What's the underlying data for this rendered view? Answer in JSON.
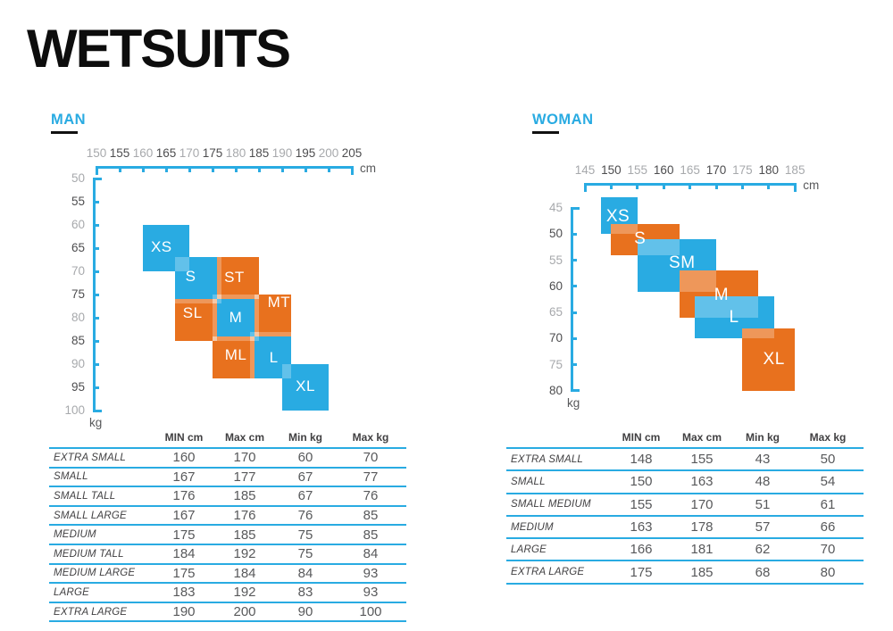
{
  "title": "WETSUITS",
  "colors": {
    "blue": "#29ABE2",
    "orange": "#E8711E",
    "overlap_highlight": "rgba(255,255,255,0.27)",
    "tick_label_light": "#A7A9AC",
    "tick_label_dark": "#4D4D4F",
    "table_line": "#29ABE2",
    "text_dark": "#414042",
    "value_text": "#58595B"
  },
  "chart_data": [
    {
      "type": "size-region-chart",
      "name": "MAN",
      "x_axis": {
        "unit": "cm",
        "min": 150,
        "max": 205,
        "step": 5,
        "ticks": [
          150,
          155,
          160,
          165,
          170,
          175,
          180,
          185,
          190,
          195,
          200,
          205
        ]
      },
      "y_axis": {
        "unit": "kg",
        "min": 50,
        "max": 100,
        "step": 5,
        "ticks": [
          50,
          55,
          60,
          65,
          70,
          75,
          80,
          85,
          90,
          95,
          100
        ]
      },
      "sizes": [
        {
          "code": "XS",
          "color": "blue",
          "cm": [
            160,
            170
          ],
          "kg": [
            60,
            70
          ],
          "label_at": [
            164,
            64.8
          ]
        },
        {
          "code": "S",
          "color": "blue",
          "cm": [
            167,
            177
          ],
          "kg": [
            67,
            77
          ],
          "label_at": [
            170.3,
            71.2
          ]
        },
        {
          "code": "M",
          "color": "blue",
          "cm": [
            175,
            185
          ],
          "kg": [
            75,
            85
          ],
          "label_at": [
            180,
            80
          ]
        },
        {
          "code": "L",
          "color": "blue",
          "cm": [
            183,
            192
          ],
          "kg": [
            83,
            93
          ],
          "label_at": [
            188.2,
            88.6
          ]
        },
        {
          "code": "XL",
          "color": "blue",
          "cm": [
            190,
            200
          ],
          "kg": [
            90,
            100
          ],
          "label_at": [
            195,
            94.8
          ]
        },
        {
          "code": "ST",
          "color": "orange",
          "cm": [
            176,
            185
          ],
          "kg": [
            67,
            76
          ],
          "label_at": [
            179.7,
            71.3
          ]
        },
        {
          "code": "SL",
          "color": "orange",
          "cm": [
            167,
            176
          ],
          "kg": [
            76,
            85
          ],
          "label_at": [
            170.7,
            79
          ]
        },
        {
          "code": "MT",
          "color": "orange",
          "cm": [
            184,
            192
          ],
          "kg": [
            75,
            84
          ],
          "label_at": [
            189.3,
            76.7
          ]
        },
        {
          "code": "ML",
          "color": "orange",
          "cm": [
            175,
            184
          ],
          "kg": [
            84,
            93
          ],
          "label_at": [
            180,
            88
          ]
        }
      ],
      "table": {
        "headers": [
          "MIN cm",
          "Max cm",
          "Min kg",
          "Max kg"
        ],
        "rows": [
          {
            "label": "EXTRA SMALL",
            "values": [
              160,
              170,
              60,
              70
            ]
          },
          {
            "label": "SMALL",
            "values": [
              167,
              177,
              67,
              77
            ]
          },
          {
            "label": "SMALL TALL",
            "values": [
              176,
              185,
              67,
              76
            ]
          },
          {
            "label": "SMALL LARGE",
            "values": [
              167,
              176,
              76,
              85
            ]
          },
          {
            "label": "MEDIUM",
            "values": [
              175,
              185,
              75,
              85
            ]
          },
          {
            "label": "MEDIUM TALL",
            "values": [
              184,
              192,
              75,
              84
            ]
          },
          {
            "label": "MEDIUM LARGE",
            "values": [
              175,
              184,
              84,
              93
            ]
          },
          {
            "label": "LARGE",
            "values": [
              183,
              192,
              83,
              93
            ]
          },
          {
            "label": "EXTRA LARGE",
            "values": [
              190,
              200,
              90,
              100
            ]
          }
        ]
      }
    },
    {
      "type": "size-region-chart",
      "name": "WOMAN",
      "x_axis": {
        "unit": "cm",
        "min": 145,
        "max": 185,
        "step": 5,
        "ticks": [
          145,
          150,
          155,
          160,
          165,
          170,
          175,
          180,
          185
        ]
      },
      "y_axis": {
        "unit": "kg",
        "min": 45,
        "max": 80,
        "step": 5,
        "ticks": [
          45,
          50,
          55,
          60,
          65,
          70,
          75,
          80
        ]
      },
      "sizes": [
        {
          "code": "XS",
          "color": "blue",
          "cm": [
            148,
            155
          ],
          "kg": [
            43,
            50
          ],
          "label_at": [
            151.3,
            46.7
          ]
        },
        {
          "code": "S",
          "color": "orange",
          "cm": [
            150,
            163
          ],
          "kg": [
            48,
            54
          ],
          "label_at": [
            155.5,
            51
          ]
        },
        {
          "code": "SM",
          "color": "blue",
          "cm": [
            155,
            170
          ],
          "kg": [
            51,
            61
          ],
          "label_at": [
            163.5,
            55.6
          ]
        },
        {
          "code": "M",
          "color": "orange",
          "cm": [
            163,
            178
          ],
          "kg": [
            57,
            66
          ],
          "label_at": [
            171,
            61.8
          ]
        },
        {
          "code": "L",
          "color": "blue",
          "cm": [
            166,
            181
          ],
          "kg": [
            62,
            70
          ],
          "label_at": [
            173.4,
            66
          ]
        },
        {
          "code": "XL",
          "color": "orange",
          "cm": [
            175,
            185
          ],
          "kg": [
            68,
            80
          ],
          "label_at": [
            181,
            74
          ]
        }
      ],
      "table": {
        "headers": [
          "MIN cm",
          "Max cm",
          "Min kg",
          "Max kg"
        ],
        "rows": [
          {
            "label": "EXTRA SMALL",
            "values": [
              148,
              155,
              43,
              50
            ]
          },
          {
            "label": "SMALL",
            "values": [
              150,
              163,
              48,
              54
            ]
          },
          {
            "label": "SMALL MEDIUM",
            "values": [
              155,
              170,
              51,
              61
            ]
          },
          {
            "label": "MEDIUM",
            "values": [
              163,
              178,
              57,
              66
            ]
          },
          {
            "label": "LARGE",
            "values": [
              166,
              181,
              62,
              70
            ]
          },
          {
            "label": "EXTRA LARGE",
            "values": [
              175,
              185,
              68,
              80
            ]
          }
        ]
      }
    }
  ]
}
